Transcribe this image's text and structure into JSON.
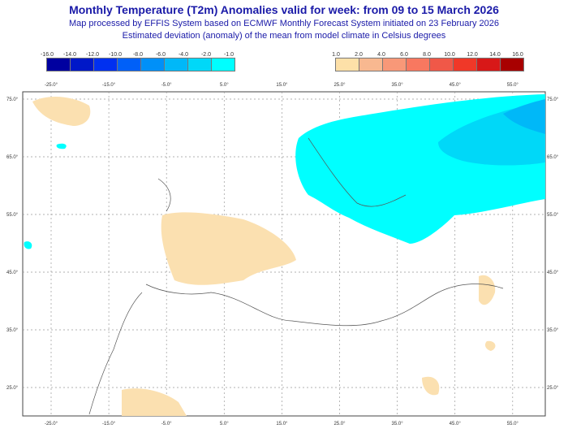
{
  "header": {
    "title": "Monthly Temperature (T2m) Anomalies valid for week: from 09 to 15 March 2026",
    "subtitle1": "Map processed by EFFIS System based on ECMWF Monthly Forecast System initiated on 23 February 2026",
    "subtitle2": "Estimated deviation (anomaly) of the mean from model climate in Celsius degrees"
  },
  "legend_cold": {
    "labels": [
      "-16.0",
      "-14.0",
      "-12.0",
      "-10.0",
      "-8.0",
      "-6.0",
      "-4.0",
      "-2.0",
      "-1.0"
    ],
    "colors": [
      "#0000a0",
      "#0018c8",
      "#0030f0",
      "#0060f8",
      "#0090f8",
      "#00b8f8",
      "#00d8f8",
      "#00ffff"
    ]
  },
  "legend_warm": {
    "labels": [
      "1.0",
      "2.0",
      "4.0",
      "6.0",
      "8.0",
      "10.0",
      "12.0",
      "14.0",
      "16.0"
    ],
    "colors": [
      "#fde0a8",
      "#f8b890",
      "#f89878",
      "#f87860",
      "#f05848",
      "#f03828",
      "#d81818",
      "#a80000"
    ]
  },
  "map": {
    "lon_labels": [
      "-25.0°",
      "-15.0°",
      "-5.0°",
      "5.0°",
      "15.0°",
      "25.0°",
      "35.0°",
      "45.0°",
      "55.0°"
    ],
    "lat_labels": [
      "75.0°",
      "65.0°",
      "55.0°",
      "45.0°",
      "35.0°",
      "25.0°"
    ]
  }
}
